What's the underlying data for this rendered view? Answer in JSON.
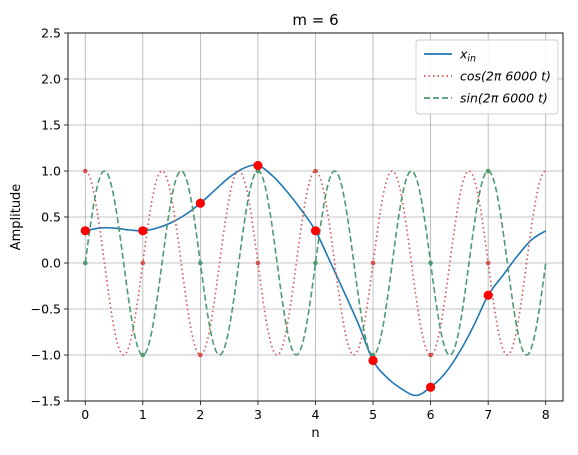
{
  "chart_data": {
    "type": "line",
    "title": "m = 6",
    "xlabel": "n",
    "ylabel": "Amplitude",
    "xlim": [
      -0.3,
      8.3
    ],
    "ylim": [
      -1.5,
      2.5
    ],
    "xticks": [
      0,
      1,
      2,
      3,
      4,
      5,
      6,
      7,
      8
    ],
    "xtick_labels": [
      "0",
      "1",
      "2",
      "3",
      "4",
      "5",
      "6",
      "7",
      "8"
    ],
    "yticks": [
      -1.5,
      -1.0,
      -0.5,
      0.0,
      0.5,
      1.0,
      1.5,
      2.0,
      2.5
    ],
    "ytick_labels": [
      "−1.5",
      "−1.0",
      "−0.5",
      "0.0",
      "0.5",
      "1.0",
      "1.5",
      "2.0",
      "2.5"
    ],
    "grid": true,
    "legend_position": "top-right",
    "series": [
      {
        "name": "x_in",
        "legend_main": "x",
        "legend_sub": "in",
        "style": "solid",
        "color": "#1f77b4",
        "x": [
          0,
          0.25,
          0.5,
          0.75,
          1,
          1.25,
          1.5,
          1.75,
          2,
          2.25,
          2.5,
          2.75,
          3,
          3.25,
          3.5,
          3.75,
          4,
          4.25,
          4.5,
          4.75,
          5,
          5.25,
          5.5,
          5.75,
          6,
          6.25,
          6.5,
          6.75,
          7,
          7.25,
          7.5,
          7.75,
          8
        ],
        "y": [
          0.35,
          0.38,
          0.38,
          0.36,
          0.35,
          0.38,
          0.44,
          0.53,
          0.65,
          0.79,
          0.93,
          1.03,
          1.06,
          0.95,
          0.78,
          0.58,
          0.35,
          0.02,
          -0.32,
          -0.67,
          -1.06,
          -1.25,
          -1.37,
          -1.44,
          -1.35,
          -1.2,
          -0.97,
          -0.68,
          -0.35,
          -0.14,
          0.07,
          0.25,
          0.35
        ]
      },
      {
        "name": "cos(2π6000t)",
        "legend_text": "cos(2π 6000 t)",
        "style": "dotted",
        "color": "#d1514e",
        "frequency_cycles_per_sample": 0.75,
        "x_range": [
          0,
          8
        ],
        "sample_x": [
          0,
          1,
          2,
          3,
          4,
          5,
          6,
          7
        ],
        "sample_y": [
          1.0,
          0.0,
          -1.0,
          0.0,
          1.0,
          0.0,
          -1.0,
          0.0
        ]
      },
      {
        "name": "sin(2π6000t)",
        "legend_text": "sin(2π 6000 t)",
        "style": "dashed",
        "color": "#4e9a70",
        "frequency_cycles_per_sample": 0.75,
        "x_range": [
          0,
          8
        ],
        "sample_x": [
          0,
          1,
          2,
          3,
          4,
          5,
          6,
          7
        ],
        "sample_y": [
          0.0,
          -1.0,
          0.0,
          1.0,
          0.0,
          -1.0,
          0.0,
          1.0
        ]
      }
    ],
    "samples": {
      "color": "#ff0000",
      "x": [
        0,
        1,
        2,
        3,
        4,
        5,
        6,
        7
      ],
      "y": [
        0.35,
        0.35,
        0.65,
        1.06,
        0.35,
        -1.06,
        -1.35,
        -0.35
      ]
    }
  }
}
